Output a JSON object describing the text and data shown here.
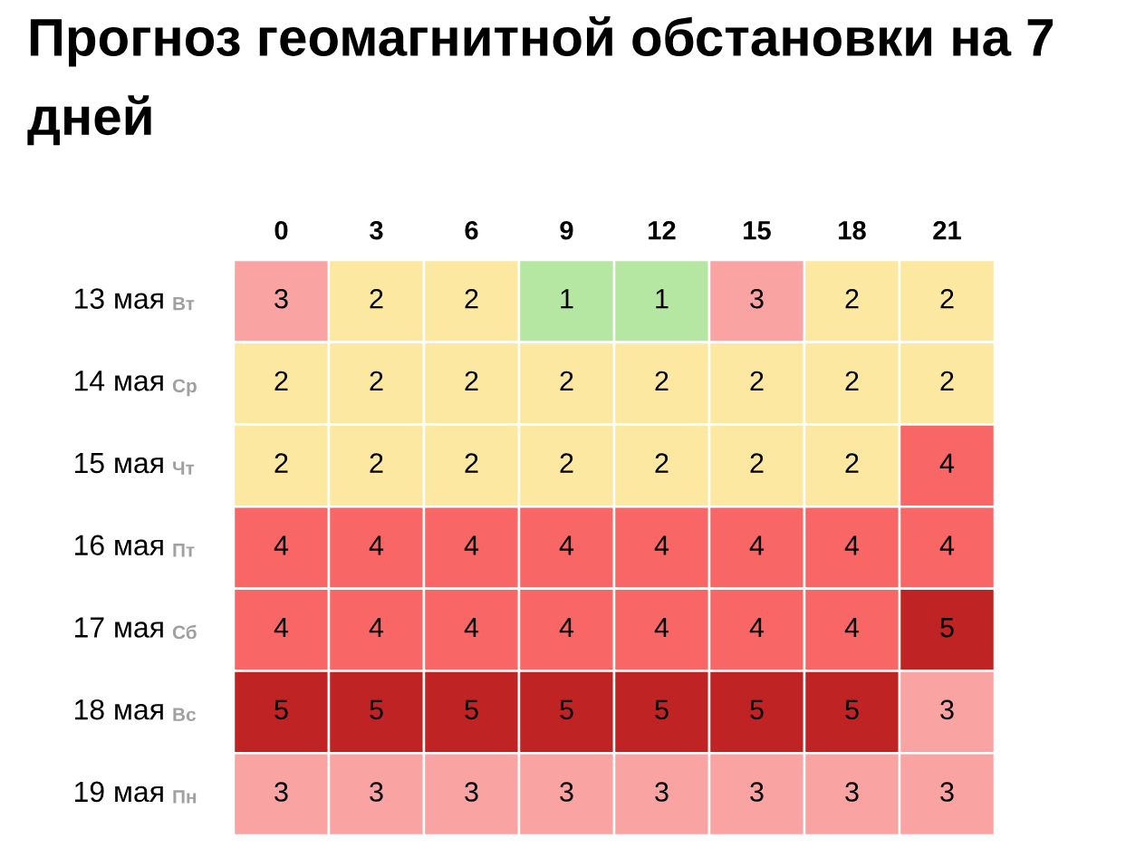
{
  "chart_data": {
    "type": "heatmap",
    "title": "Прогноз геомагнитной обстановки на 7 дней",
    "categories": [
      "0",
      "3",
      "6",
      "9",
      "12",
      "15",
      "18",
      "21"
    ],
    "y_categories": [
      "13 мая",
      "14 мая",
      "15 мая",
      "16 мая",
      "17 мая",
      "18 мая",
      "19 мая"
    ],
    "y2_categories": [
      "Вт",
      "Ср",
      "Чт",
      "Пт",
      "Сб",
      "Вс",
      "Пн"
    ],
    "cells": [
      [
        3,
        2,
        2,
        1,
        1,
        3,
        2,
        2
      ],
      [
        2,
        2,
        2,
        2,
        2,
        2,
        2,
        2
      ],
      [
        2,
        2,
        2,
        2,
        2,
        2,
        2,
        4
      ],
      [
        4,
        4,
        4,
        4,
        4,
        4,
        4,
        4
      ],
      [
        4,
        4,
        4,
        4,
        4,
        4,
        4,
        5
      ],
      [
        5,
        5,
        5,
        5,
        5,
        5,
        5,
        3
      ],
      [
        3,
        3,
        3,
        3,
        3,
        3,
        3,
        3
      ]
    ],
    "colors": [
      "#b5e6a2",
      "#fce8a0",
      "#f9a3a3",
      "#f96666",
      "#bf2323"
    ],
    "data_labels": true
  }
}
